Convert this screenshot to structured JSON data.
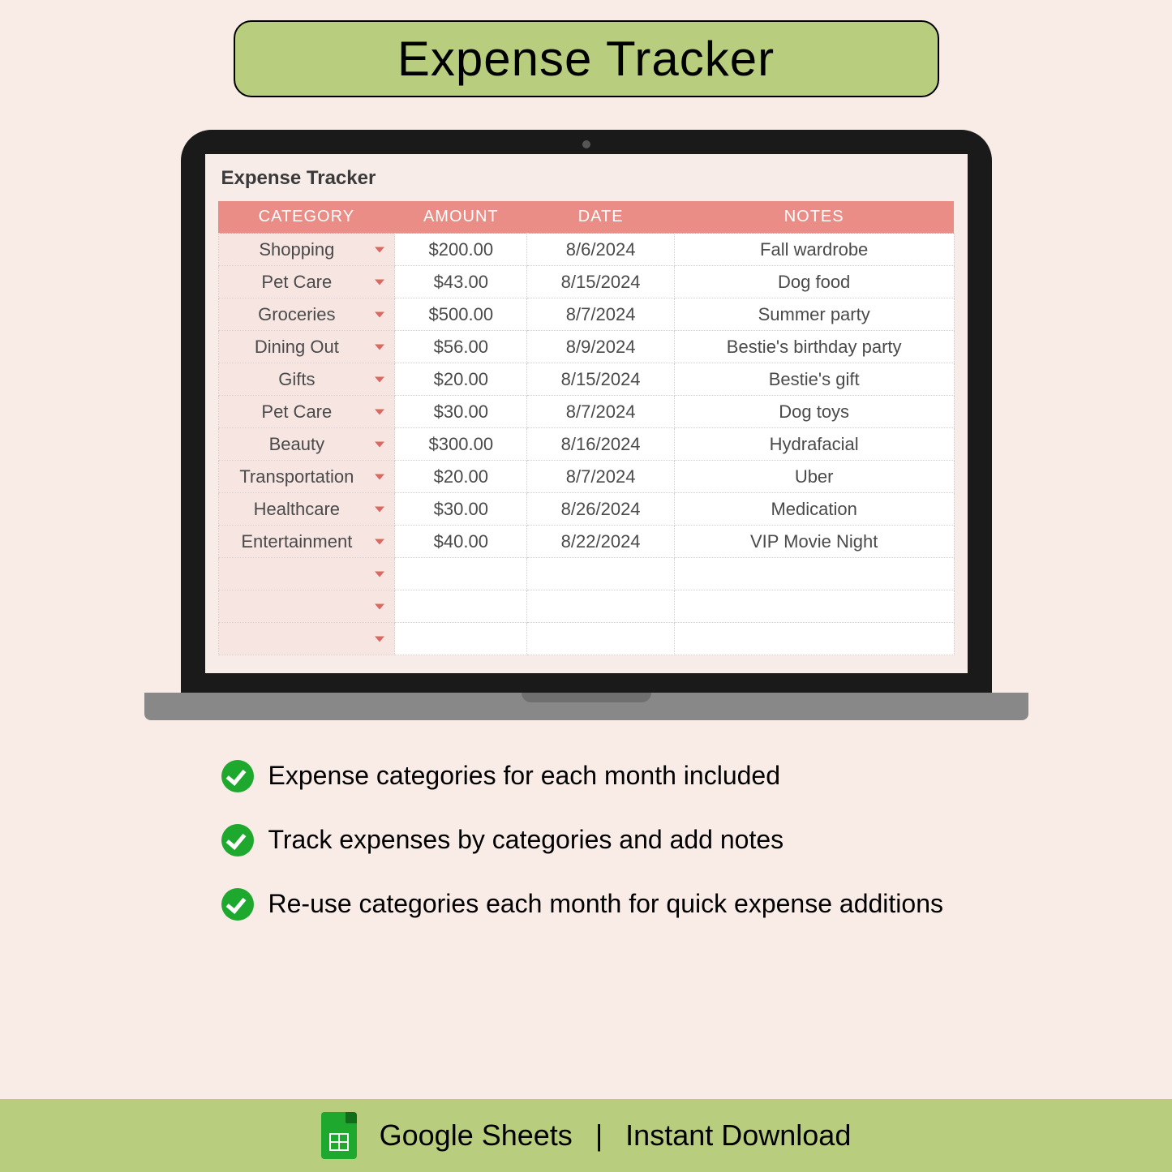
{
  "banner": {
    "title": "Expense Tracker"
  },
  "sheet": {
    "title": "Expense Tracker",
    "columns": [
      "CATEGORY",
      "AMOUNT",
      "DATE",
      "NOTES"
    ],
    "header_bg": "#e98d86",
    "header_text_color": "#ffffff",
    "category_cell_bg": "#f7e5e2",
    "dropdown_chevron_color": "#d76b63",
    "cell_bg": "#ffffff",
    "cell_border_color": "#cfcfcf",
    "rows": [
      {
        "category": "Shopping",
        "amount": "$200.00",
        "date": "8/6/2024",
        "notes": "Fall wardrobe"
      },
      {
        "category": "Pet Care",
        "amount": "$43.00",
        "date": "8/15/2024",
        "notes": "Dog food"
      },
      {
        "category": "Groceries",
        "amount": "$500.00",
        "date": "8/7/2024",
        "notes": "Summer party"
      },
      {
        "category": "Dining Out",
        "amount": "$56.00",
        "date": "8/9/2024",
        "notes": "Bestie's birthday party"
      },
      {
        "category": "Gifts",
        "amount": "$20.00",
        "date": "8/15/2024",
        "notes": "Bestie's gift"
      },
      {
        "category": "Pet Care",
        "amount": "$30.00",
        "date": "8/7/2024",
        "notes": "Dog toys"
      },
      {
        "category": "Beauty",
        "amount": "$300.00",
        "date": "8/16/2024",
        "notes": "Hydrafacial"
      },
      {
        "category": "Transportation",
        "amount": "$20.00",
        "date": "8/7/2024",
        "notes": "Uber"
      },
      {
        "category": "Healthcare",
        "amount": "$30.00",
        "date": "8/26/2024",
        "notes": "Medication"
      },
      {
        "category": "Entertainment",
        "amount": "$40.00",
        "date": "8/22/2024",
        "notes": "VIP Movie Night"
      },
      {
        "category": "",
        "amount": "",
        "date": "",
        "notes": ""
      },
      {
        "category": "",
        "amount": "",
        "date": "",
        "notes": ""
      },
      {
        "category": "",
        "amount": "",
        "date": "",
        "notes": ""
      }
    ]
  },
  "features": {
    "items": [
      "Expense categories for each month included",
      "Track expenses by categories and add notes",
      "Re-use categories each month for quick expense additions"
    ],
    "check_color": "#1fa82e"
  },
  "footer": {
    "platform": "Google Sheets",
    "separator": "|",
    "delivery": "Instant Download",
    "bg": "#b8ce7e",
    "icon_color": "#1fa82e"
  },
  "colors": {
    "page_bg": "#f9ece7",
    "banner_bg": "#b8ce7e",
    "banner_border": "#000000",
    "laptop_body": "#1a1a1a",
    "laptop_base": "#888888",
    "screen_bg": "#f7ece8"
  }
}
